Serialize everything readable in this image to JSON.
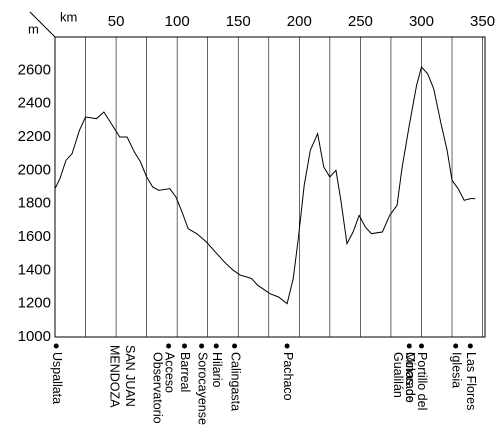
{
  "chart_data": {
    "type": "line",
    "x_label": "km",
    "y_label": "m",
    "x": [
      0,
      4,
      9,
      14,
      20,
      25,
      34,
      40,
      47,
      53,
      59,
      65,
      70,
      75,
      80,
      85,
      94,
      99,
      104,
      109,
      116,
      124,
      130,
      140,
      146,
      152,
      157,
      161,
      166,
      176,
      183,
      190,
      195,
      199,
      204,
      209,
      215,
      220,
      225,
      230,
      234,
      239,
      244,
      249,
      254,
      259,
      268,
      274,
      280,
      284,
      290,
      296,
      300,
      305,
      310,
      316,
      321,
      325,
      330,
      335,
      340,
      344
    ],
    "series": [
      {
        "color": "#000000",
        "values": [
          1890,
          1950,
          2060,
          2100,
          2240,
          2320,
          2310,
          2350,
          2270,
          2200,
          2200,
          2110,
          2050,
          1960,
          1900,
          1880,
          1890,
          1840,
          1750,
          1650,
          1620,
          1570,
          1520,
          1440,
          1400,
          1370,
          1360,
          1350,
          1310,
          1260,
          1240,
          1200,
          1350,
          1580,
          1910,
          2120,
          2220,
          2020,
          1960,
          2000,
          1820,
          1560,
          1630,
          1730,
          1660,
          1620,
          1630,
          1730,
          1790,
          2010,
          2270,
          2510,
          2620,
          2580,
          2490,
          2280,
          2120,
          1940,
          1890,
          1820,
          1830,
          1830
        ]
      }
    ],
    "xlim": [
      0,
      352
    ],
    "xticks": [
      50,
      100,
      150,
      200,
      250,
      300,
      350
    ],
    "xgrid": [
      0,
      25,
      50,
      75,
      100,
      125,
      150,
      175,
      200,
      225,
      250,
      275,
      300,
      325,
      350
    ],
    "ylim": [
      1000,
      2800
    ],
    "yticks": [
      1000,
      1200,
      1400,
      1600,
      1800,
      2000,
      2200,
      2400,
      2600
    ],
    "places": [
      {
        "km": 1,
        "lines": [
          "Uspallata"
        ],
        "marker": true
      },
      {
        "km": 48,
        "lines": [
          "MENDOZA"
        ],
        "marker": false
      },
      {
        "km": 61,
        "lines": [
          "SAN JUAN"
        ],
        "marker": false
      },
      {
        "km": 93,
        "lines": [
          "Acceso",
          "Observatorio"
        ],
        "marker": true
      },
      {
        "km": 106,
        "lines": [
          "Barreal"
        ],
        "marker": true
      },
      {
        "km": 120,
        "lines": [
          "Sorocayense"
        ],
        "marker": true
      },
      {
        "km": 132,
        "lines": [
          "Hilario"
        ],
        "marker": true
      },
      {
        "km": 147,
        "lines": [
          "Calingasta"
        ],
        "marker": true
      },
      {
        "km": 190,
        "lines": [
          "Pachaco"
        ],
        "marker": true
      },
      {
        "km": 290,
        "lines": [
          "Minas de",
          "Gualilán"
        ],
        "marker": true
      },
      {
        "km": 300,
        "lines": [
          "Portillo del",
          "Colorado"
        ],
        "marker": true
      },
      {
        "km": 328,
        "lines": [
          "Iglesia"
        ],
        "marker": true
      },
      {
        "km": 340,
        "lines": [
          "Las Flores"
        ],
        "marker": true
      }
    ]
  }
}
